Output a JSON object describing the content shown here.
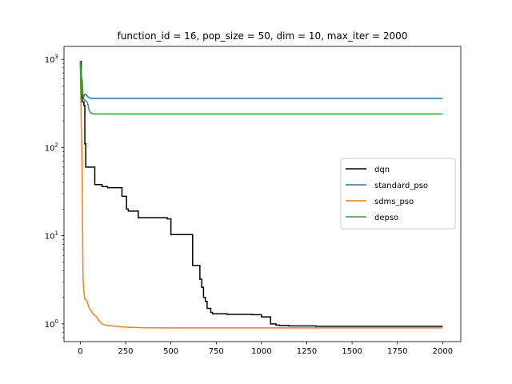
{
  "chart_data": {
    "type": "line",
    "title": "function_id = 16, pop_size = 50, dim = 10, max_iter = 2000",
    "xlabel": "",
    "ylabel": "",
    "yscale": "log",
    "xlim": [
      -90,
      2100
    ],
    "ylim": [
      0.63,
      1400
    ],
    "xticks": [
      0,
      250,
      500,
      750,
      1000,
      1250,
      1500,
      1750,
      2000
    ],
    "xtick_labels": [
      "0",
      "250",
      "500",
      "750",
      "1000",
      "1250",
      "1500",
      "1750",
      "2000"
    ],
    "yticks": [
      1,
      10,
      100,
      1000
    ],
    "ytick_labels": [
      "10^0",
      "10^1",
      "10^2",
      "10^3"
    ],
    "grid": false,
    "legend_position": "center-right",
    "series": [
      {
        "name": "dqn",
        "color": "#000000",
        "step": true,
        "x": [
          0,
          5,
          10,
          20,
          25,
          30,
          35,
          40,
          80,
          120,
          150,
          165,
          200,
          230,
          255,
          265,
          320,
          330,
          430,
          480,
          500,
          540,
          610,
          620,
          650,
          660,
          670,
          680,
          690,
          700,
          720,
          730,
          800,
          810,
          900,
          950,
          1000,
          1050,
          1080,
          1100,
          1150,
          1200,
          1300,
          2000
        ],
        "y": [
          950,
          500,
          330,
          300,
          110,
          60,
          60,
          60,
          38,
          36,
          35,
          35,
          35,
          28,
          20,
          19,
          16,
          16,
          16,
          15.5,
          10.3,
          10.3,
          10.3,
          4.6,
          4.6,
          3.2,
          2.6,
          2.0,
          1.8,
          1.5,
          1.35,
          1.3,
          1.3,
          1.28,
          1.28,
          1.27,
          1.2,
          1.0,
          0.97,
          0.96,
          0.95,
          0.95,
          0.94,
          0.94
        ]
      },
      {
        "name": "standard_pso",
        "color": "#1f77b4",
        "step": false,
        "x": [
          0,
          5,
          10,
          20,
          25,
          30,
          35,
          40,
          50,
          60,
          100,
          500,
          1000,
          2000
        ],
        "y": [
          950,
          700,
          420,
          380,
          400,
          400,
          395,
          380,
          365,
          360,
          360,
          360,
          360,
          360
        ]
      },
      {
        "name": "sdms_pso",
        "color": "#ff7f0e",
        "step": false,
        "x": [
          0,
          5,
          10,
          15,
          20,
          25,
          30,
          40,
          45,
          50,
          60,
          70,
          80,
          90,
          100,
          110,
          120,
          130,
          150,
          200,
          250,
          300,
          350,
          500,
          750,
          1000,
          1500,
          2000
        ],
        "y": [
          950,
          200,
          55,
          3.2,
          2.3,
          1.9,
          1.9,
          1.75,
          1.6,
          1.5,
          1.4,
          1.3,
          1.25,
          1.2,
          1.1,
          1.05,
          1.0,
          0.98,
          0.96,
          0.94,
          0.92,
          0.91,
          0.905,
          0.9,
          0.9,
          0.9,
          0.9,
          0.9
        ]
      },
      {
        "name": "depso",
        "color": "#2ca02c",
        "step": false,
        "x": [
          0,
          5,
          10,
          15,
          20,
          30,
          40,
          50,
          60,
          80,
          100,
          200,
          500,
          1000,
          2000
        ],
        "y": [
          950,
          350,
          600,
          380,
          350,
          340,
          320,
          260,
          245,
          240,
          240,
          240,
          240,
          240,
          240
        ]
      }
    ]
  }
}
